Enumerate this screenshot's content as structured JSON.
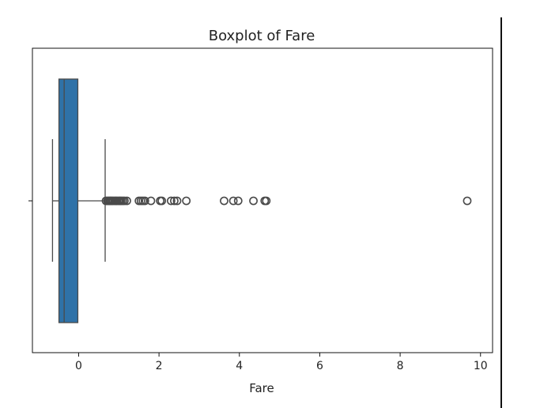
{
  "chart_data": {
    "type": "boxplot",
    "title": "Boxplot of Fare",
    "xlabel": "Fare",
    "ylabel": "",
    "xlim": [
      -1.15,
      10.3
    ],
    "xticks": [
      0,
      2,
      4,
      6,
      8,
      10
    ],
    "xtick_labels": [
      "0",
      "2",
      "4",
      "6",
      "8",
      "10"
    ],
    "grid": false,
    "orientation": "horizontal",
    "box": {
      "whisker_low": -0.65,
      "q1": -0.49,
      "median": -0.36,
      "q3": -0.02,
      "whisker_high": 0.66
    },
    "outliers": [
      0.68,
      0.72,
      0.75,
      0.78,
      0.8,
      0.83,
      0.86,
      0.9,
      0.93,
      0.96,
      1.0,
      1.03,
      1.06,
      1.1,
      1.14,
      1.2,
      1.5,
      1.55,
      1.6,
      1.65,
      1.8,
      2.03,
      2.07,
      2.3,
      2.38,
      2.45,
      2.68,
      3.62,
      3.85,
      3.97,
      4.35,
      4.63,
      4.67,
      9.67
    ],
    "colors": {
      "box_fill": "#2f72a8",
      "line": "#4a4a4a",
      "axis": "#111111"
    }
  }
}
